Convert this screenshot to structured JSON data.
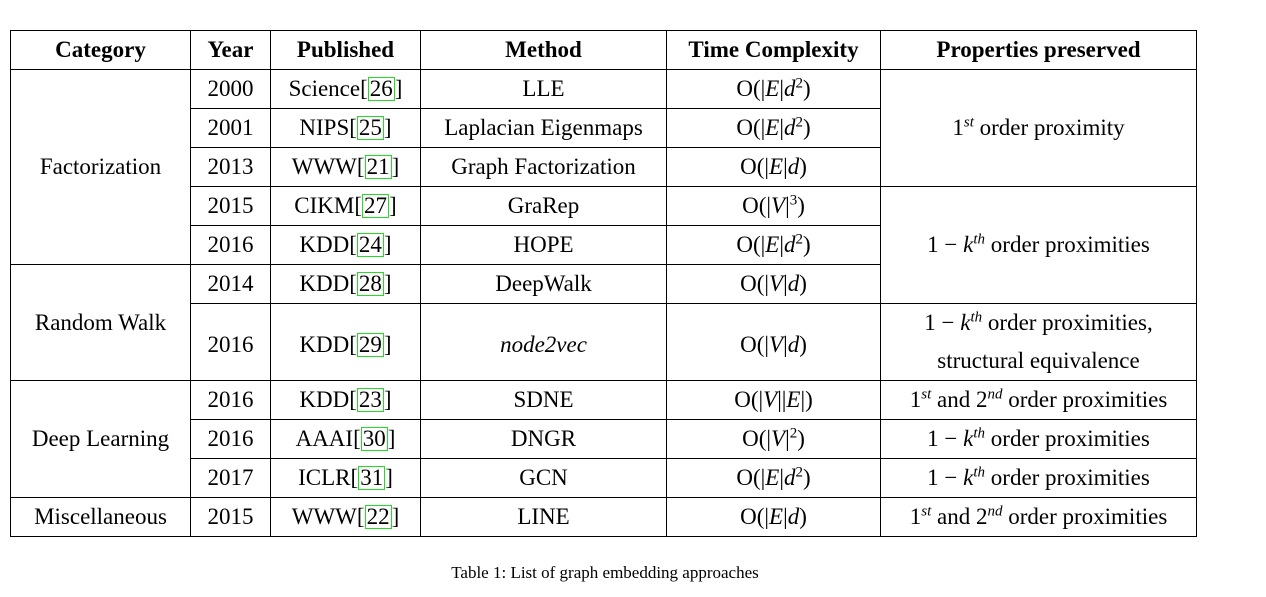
{
  "table": {
    "headers": [
      "Category",
      "Year",
      "Published",
      "Method",
      "Time Complexity",
      "Properties preserved"
    ],
    "categories": [
      "Factorization",
      "Random Walk",
      "Deep Learning",
      "Miscellaneous"
    ],
    "rows": [
      {
        "year": "2000",
        "venue": "Science",
        "ref": "26",
        "method": "LLE",
        "complexity": "O(|E|d²)"
      },
      {
        "year": "2001",
        "venue": "NIPS",
        "ref": "25",
        "method": "Laplacian Eigenmaps",
        "complexity": "O(|E|d²)"
      },
      {
        "year": "2013",
        "venue": "WWW",
        "ref": "21",
        "method": "Graph Factorization",
        "complexity": "O(|E|d)"
      },
      {
        "year": "2015",
        "venue": "CIKM",
        "ref": "27",
        "method": "GraRep",
        "complexity": "O(|V|³)"
      },
      {
        "year": "2016",
        "venue": "KDD",
        "ref": "24",
        "method": "HOPE",
        "complexity": "O(|E|d²)"
      },
      {
        "year": "2014",
        "venue": "KDD",
        "ref": "28",
        "method": "DeepWalk",
        "complexity": "O(|V|d)"
      },
      {
        "year": "2016",
        "venue": "KDD",
        "ref": "29",
        "method": "node2vec",
        "complexity": "O(|V|d)"
      },
      {
        "year": "2016",
        "venue": "KDD",
        "ref": "23",
        "method": "SDNE",
        "complexity": "O(|V||E|)"
      },
      {
        "year": "2016",
        "venue": "AAAI",
        "ref": "30",
        "method": "DNGR",
        "complexity": "O(|V|²)"
      },
      {
        "year": "2017",
        "venue": "ICLR",
        "ref": "31",
        "method": "GCN",
        "complexity": "O(|E|d²)"
      },
      {
        "year": "2015",
        "venue": "WWW",
        "ref": "22",
        "method": "LINE",
        "complexity": "O(|E|d)"
      }
    ],
    "properties": {
      "p1": "1st order proximity",
      "p2": "1 − kth order proximities",
      "p3a": "1 − kth order proximities,",
      "p3b": "structural equivalence",
      "p4": "1st and 2nd order proximities",
      "p5": "1 − kth order proximities",
      "p6": "1 − kth order proximities",
      "p7": "1st and 2nd order proximities"
    }
  },
  "caption": "Table 1: List of graph embedding approaches"
}
